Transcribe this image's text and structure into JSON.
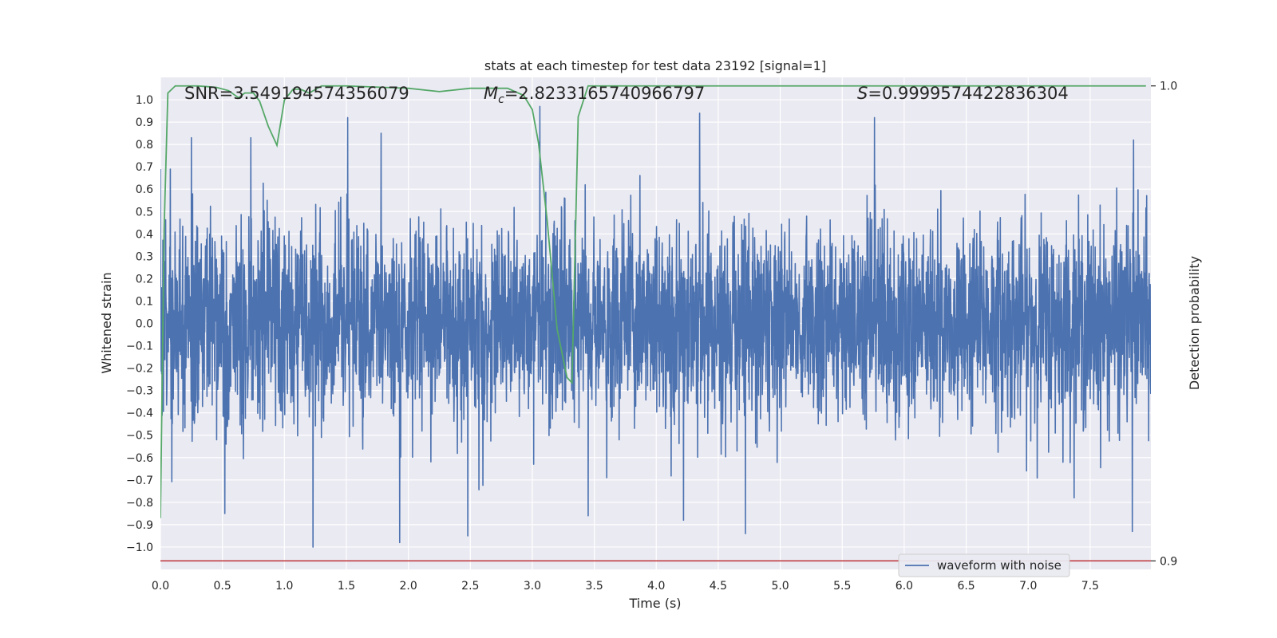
{
  "chart_data": {
    "type": "line",
    "title": "stats at each timestep for test data 23192 [signal=1]",
    "xlabel": "Time (s)",
    "ylabel": "Whitened strain",
    "ylabel_right": "Detection probability",
    "xlim": [
      0.0,
      7.99
    ],
    "ylim": [
      -1.1,
      1.1
    ],
    "ylim_right": [
      0.8982,
      1.0018
    ],
    "x_ticks": [
      0.0,
      0.5,
      1.0,
      1.5,
      2.0,
      2.5,
      3.0,
      3.5,
      4.0,
      4.5,
      5.0,
      5.5,
      6.0,
      6.5,
      7.0,
      7.5
    ],
    "x_tick_labels": [
      "0.0",
      "0.5",
      "1.0",
      "1.5",
      "2.0",
      "2.5",
      "3.0",
      "3.5",
      "4.0",
      "4.5",
      "5.0",
      "5.5",
      "6.0",
      "6.5",
      "7.0",
      "7.5"
    ],
    "y_ticks": [
      1.0,
      0.9,
      0.8,
      0.7,
      0.6,
      0.5,
      0.4,
      0.3,
      0.2,
      0.1,
      0.0,
      -0.1,
      -0.2,
      -0.3,
      -0.4,
      -0.5,
      -0.6,
      -0.7,
      -0.8,
      -0.9,
      -1.0
    ],
    "y_tick_labels": [
      "1.0",
      "0.9",
      "0.8",
      "0.7",
      "0.6",
      "0.5",
      "0.4",
      "0.3",
      "0.2",
      "0.1",
      "0.0",
      "−0.1",
      "−0.2",
      "−0.3",
      "−0.4",
      "−0.5",
      "−0.6",
      "−0.7",
      "−0.8",
      "−0.9",
      "−1.0"
    ],
    "y_right_ticks": [
      1.0,
      0.9
    ],
    "y_right_tick_labels": [
      "1.0",
      "0.9"
    ],
    "grid": true,
    "legend_placement": "lower-right",
    "annotations": {
      "snr": "SNR=3.549194574356079",
      "mc_symbol": "M",
      "mc_sub": "c",
      "mc_value": "=2.8233165740966797",
      "s_symbol": "S",
      "s_value": "=0.9999574422836304"
    },
    "series": [
      {
        "name": "waveform with noise",
        "axis": "left",
        "color": "#4c72b0",
        "description_range": [
          -1.0,
          0.97
        ],
        "x_range": [
          0.0,
          7.99
        ],
        "peaks": [
          {
            "x": 0.0,
            "y": 0.69
          },
          {
            "x": 0.08,
            "y": 0.69
          },
          {
            "x": 0.25,
            "y": 0.83
          },
          {
            "x": 0.73,
            "y": 0.83
          },
          {
            "x": 1.51,
            "y": 0.92
          },
          {
            "x": 1.78,
            "y": 0.85
          },
          {
            "x": 3.06,
            "y": 0.97
          },
          {
            "x": 4.35,
            "y": 0.94
          },
          {
            "x": 5.76,
            "y": 0.92
          },
          {
            "x": 7.85,
            "y": 0.82
          }
        ],
        "troughs": [
          {
            "x": 0.52,
            "y": -0.85
          },
          {
            "x": 1.23,
            "y": -1.0
          },
          {
            "x": 1.93,
            "y": -0.98
          },
          {
            "x": 2.48,
            "y": -0.95
          },
          {
            "x": 3.45,
            "y": -0.86
          },
          {
            "x": 4.22,
            "y": -0.88
          },
          {
            "x": 4.72,
            "y": -0.94
          },
          {
            "x": 7.84,
            "y": -0.93
          }
        ]
      },
      {
        "name": "",
        "axis": "right",
        "color": "#55a868",
        "x": [
          0.0,
          0.03,
          0.06,
          0.12,
          0.3,
          0.45,
          0.55,
          0.63,
          0.68,
          0.75,
          0.8,
          0.87,
          0.94,
          1.0,
          1.07,
          1.13,
          1.2,
          1.3,
          1.5,
          2.0,
          2.25,
          2.5,
          2.8,
          2.93,
          3.0,
          3.05,
          3.12,
          3.2,
          3.28,
          3.32,
          3.37,
          3.45,
          3.6,
          4.0,
          5.0,
          6.0,
          7.0,
          7.95
        ],
        "y": [
          0.909,
          0.97,
          0.9985,
          1.0,
          1.0,
          0.9997,
          0.999,
          0.9975,
          0.9985,
          0.9985,
          0.9968,
          0.9915,
          0.9875,
          0.997,
          0.9993,
          0.9993,
          0.9985,
          1.0,
          1.0,
          0.9995,
          0.9988,
          0.9995,
          0.9995,
          0.998,
          0.995,
          0.988,
          0.9716,
          0.9488,
          0.9386,
          0.9375,
          0.9935,
          1.0,
          1.0,
          1.0,
          1.0,
          1.0,
          1.0,
          1.0
        ]
      },
      {
        "name": "",
        "axis": "right",
        "color": "#c44e52",
        "x": [
          0.0,
          7.99
        ],
        "y": [
          0.9,
          0.9
        ]
      }
    ]
  }
}
